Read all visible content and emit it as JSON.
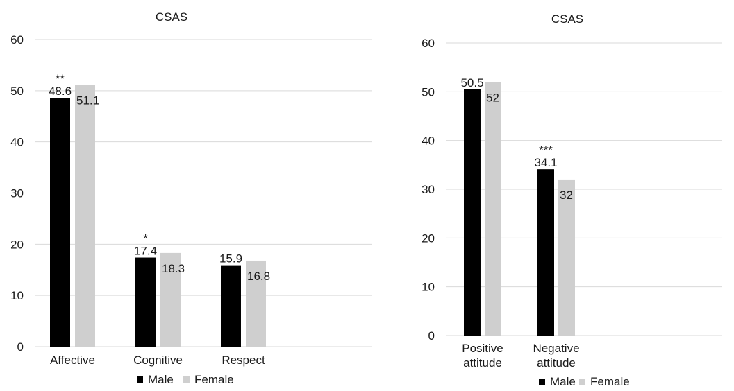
{
  "chart_data": [
    {
      "type": "bar",
      "title": "CSAS",
      "categories": [
        "Affective",
        "Cognitive",
        "Respect"
      ],
      "series": [
        {
          "name": "Male",
          "values": [
            48.6,
            17.4,
            15.9
          ],
          "color": "#000000"
        },
        {
          "name": "Female",
          "values": [
            51.1,
            18.3,
            16.8
          ],
          "color": "#cfcfcf"
        }
      ],
      "significance": [
        "**",
        "*",
        ""
      ],
      "ylim": [
        0,
        60
      ],
      "yticks": [
        0,
        10,
        20,
        30,
        40,
        50,
        60
      ],
      "grid": true,
      "legend": "bottom"
    },
    {
      "type": "bar",
      "title": "CSAS",
      "categories": [
        [
          "Positive",
          "attitude"
        ],
        [
          "Negative",
          "attitude"
        ]
      ],
      "series": [
        {
          "name": "Male",
          "values": [
            50.5,
            34.1
          ],
          "color": "#000000"
        },
        {
          "name": "Female",
          "values": [
            52,
            32
          ],
          "color": "#cfcfcf"
        }
      ],
      "significance": [
        "",
        "***"
      ],
      "ylim": [
        0,
        60
      ],
      "yticks": [
        0,
        10,
        20,
        30,
        40,
        50,
        60
      ],
      "grid": true,
      "legend": "bottom"
    }
  ]
}
